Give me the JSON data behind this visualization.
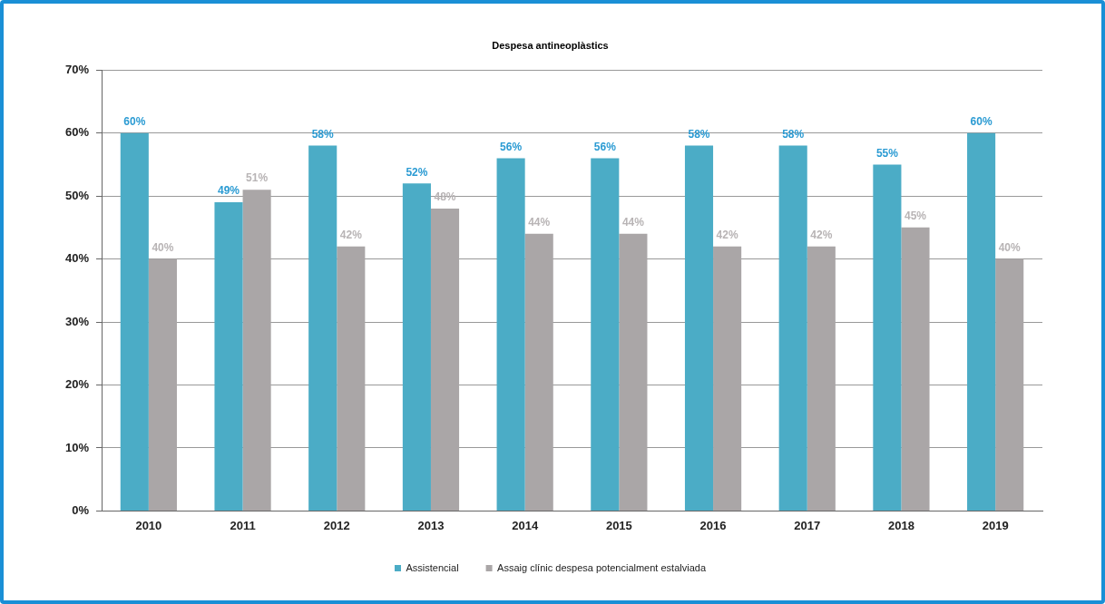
{
  "chart_data": {
    "type": "bar",
    "title": "Despesa antineoplàstics",
    "categories": [
      "2010",
      "2011",
      "2012",
      "2013",
      "2014",
      "2015",
      "2016",
      "2017",
      "2018",
      "2019"
    ],
    "series": [
      {
        "name": "Assistencial",
        "color": "#4bacc6",
        "values": [
          60,
          49,
          58,
          52,
          56,
          56,
          58,
          58,
          55,
          60
        ],
        "value_labels": [
          "60%",
          "49%",
          "58%",
          "52%",
          "56%",
          "56%",
          "58%",
          "58%",
          "55%",
          "60%"
        ]
      },
      {
        "name": "Assaig clínic despesa potencialment estalviada",
        "color": "#aaa6a7",
        "values": [
          40,
          51,
          42,
          48,
          44,
          44,
          42,
          42,
          45,
          40
        ],
        "value_labels": [
          "40%",
          "51%",
          "42%",
          "48%",
          "44%",
          "44%",
          "42%",
          "42%",
          "45%",
          "40%"
        ]
      }
    ],
    "ylim": [
      0,
      70
    ],
    "yticks": [
      {
        "value": 0,
        "label": "0%"
      },
      {
        "value": 10,
        "label": "10%"
      },
      {
        "value": 20,
        "label": "20%"
      },
      {
        "value": 30,
        "label": "30%"
      },
      {
        "value": 40,
        "label": "40%"
      },
      {
        "value": 50,
        "label": "50%"
      },
      {
        "value": 60,
        "label": "60%"
      },
      {
        "value": 70,
        "label": "70%"
      }
    ],
    "grid": "y",
    "legend": "bottom"
  }
}
